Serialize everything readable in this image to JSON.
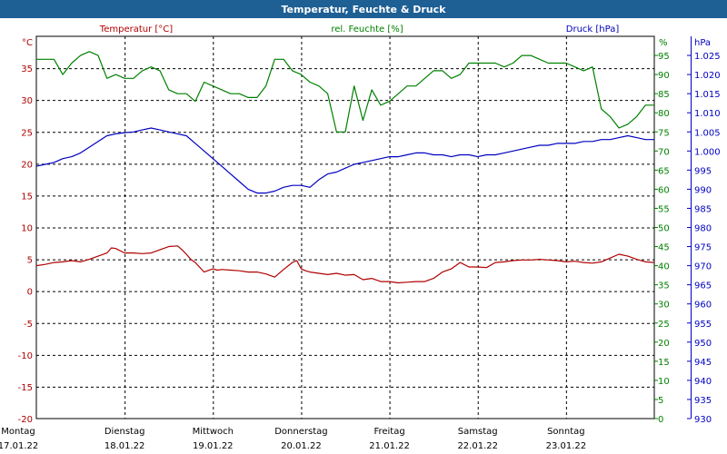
{
  "header": {
    "title": "Temperatur, Feuchte & Druck"
  },
  "colors": {
    "title_bg": "#1e5f94",
    "title_text": "#ffffff",
    "temperature": "#b00000",
    "humidity": "#008000",
    "pressure": "#0000c0",
    "grid": "#000000",
    "axis_text": "#000000"
  },
  "chart_data": {
    "type": "line",
    "title": "Temperatur, Feuchte & Druck",
    "x_range": [
      0,
      7
    ],
    "days": [
      {
        "weekday": "Montag",
        "date": "17.01.22"
      },
      {
        "weekday": "Dienstag",
        "date": "18.01.22"
      },
      {
        "weekday": "Mittwoch",
        "date": "19.01.22"
      },
      {
        "weekday": "Donnerstag",
        "date": "20.01.22"
      },
      {
        "weekday": "Freitag",
        "date": "21.01.22"
      },
      {
        "weekday": "Samstag",
        "date": "22.01.22"
      },
      {
        "weekday": "Sonntag",
        "date": "23.01.22"
      }
    ],
    "axes": {
      "temperature": {
        "label": "Temperatur [°C]",
        "unit": "°C",
        "min": -20,
        "max": 40,
        "ticks": [
          -20,
          -15,
          -10,
          -5,
          0,
          5,
          10,
          15,
          20,
          25,
          30,
          35
        ]
      },
      "humidity": {
        "label": "rel. Feuchte [%]",
        "unit": "%",
        "min": 0,
        "max": 100,
        "ticks": [
          0,
          5,
          10,
          15,
          20,
          25,
          30,
          35,
          40,
          45,
          50,
          55,
          60,
          65,
          70,
          75,
          80,
          85,
          90,
          95
        ]
      },
      "pressure": {
        "label": "Druck [hPa]",
        "unit": "hPa",
        "min": 930,
        "max": 1030,
        "ticks": [
          "930",
          "935",
          "940",
          "945",
          "950",
          "955",
          "960",
          "965",
          "970",
          "975",
          "980",
          "985",
          "990",
          "995",
          "1.000",
          "1.005",
          "1.010",
          "1.015",
          "1.020",
          "1.025"
        ]
      }
    },
    "series": [
      {
        "name": "Temperatur [°C]",
        "axis": "temperature",
        "x": [
          0,
          0.1,
          0.2,
          0.3,
          0.4,
          0.5,
          0.6,
          0.7,
          0.8,
          0.85,
          0.9,
          1.0,
          1.1,
          1.2,
          1.3,
          1.4,
          1.5,
          1.6,
          1.65,
          1.7,
          1.75,
          1.8,
          1.9,
          2.0,
          2.05,
          2.1,
          2.2,
          2.3,
          2.4,
          2.5,
          2.6,
          2.7,
          2.8,
          2.9,
          2.95,
          3.0,
          3.05,
          3.1,
          3.2,
          3.3,
          3.4,
          3.5,
          3.6,
          3.7,
          3.8,
          3.9,
          4.0,
          4.1,
          4.2,
          4.3,
          4.4,
          4.5,
          4.6,
          4.7,
          4.8,
          4.9,
          5.0,
          5.1,
          5.2,
          5.3,
          5.4,
          5.5,
          5.6,
          5.7,
          5.8,
          5.9,
          6.0,
          6.1,
          6.2,
          6.3,
          6.4,
          6.5,
          6.6,
          6.7,
          6.8,
          6.9,
          7.0
        ],
        "values": [
          4.0,
          4.2,
          4.5,
          4.6,
          4.8,
          4.6,
          5.0,
          5.5,
          6.0,
          6.8,
          6.7,
          6.0,
          6.0,
          5.9,
          6.0,
          6.5,
          7.0,
          7.1,
          6.5,
          5.8,
          5.0,
          4.5,
          3.0,
          3.5,
          3.3,
          3.4,
          3.3,
          3.2,
          3.0,
          3.0,
          2.7,
          2.2,
          3.4,
          4.5,
          4.8,
          3.5,
          3.2,
          3.0,
          2.8,
          2.6,
          2.8,
          2.5,
          2.6,
          1.8,
          2.0,
          1.5,
          1.5,
          1.3,
          1.4,
          1.5,
          1.5,
          2.0,
          3.0,
          3.5,
          4.5,
          3.8,
          3.8,
          3.7,
          4.5,
          4.6,
          4.8,
          4.9,
          4.9,
          5.0,
          4.9,
          4.8,
          4.6,
          4.7,
          4.5,
          4.4,
          4.6,
          5.2,
          5.8,
          5.5,
          5.0,
          4.6,
          4.5
        ]
      },
      {
        "name": "rel. Feuchte [%]",
        "axis": "humidity",
        "x": [
          0,
          0.1,
          0.2,
          0.3,
          0.4,
          0.5,
          0.6,
          0.7,
          0.8,
          0.9,
          1.0,
          1.1,
          1.2,
          1.3,
          1.4,
          1.5,
          1.6,
          1.7,
          1.8,
          1.9,
          2.0,
          2.1,
          2.2,
          2.3,
          2.4,
          2.5,
          2.6,
          2.7,
          2.8,
          2.9,
          3.0,
          3.1,
          3.2,
          3.3,
          3.4,
          3.5,
          3.6,
          3.7,
          3.8,
          3.9,
          4.0,
          4.1,
          4.2,
          4.3,
          4.4,
          4.5,
          4.6,
          4.7,
          4.8,
          4.9,
          5.0,
          5.1,
          5.2,
          5.3,
          5.4,
          5.5,
          5.6,
          5.7,
          5.8,
          5.9,
          6.0,
          6.1,
          6.2,
          6.3,
          6.4,
          6.5,
          6.6,
          6.7,
          6.8,
          6.9,
          7.0
        ],
        "values": [
          94,
          94,
          94,
          90,
          93,
          95,
          96,
          95,
          89,
          90,
          89,
          89,
          91,
          92,
          91,
          86,
          85,
          85,
          83,
          88,
          87,
          86,
          85,
          85,
          84,
          84,
          87,
          94,
          94,
          91,
          90,
          88,
          87,
          85,
          75,
          75,
          87,
          78,
          86,
          82,
          83,
          85,
          87,
          87,
          89,
          91,
          91,
          89,
          90,
          93,
          93,
          93,
          93,
          92,
          93,
          95,
          95,
          94,
          93,
          93,
          93,
          92,
          91,
          92,
          81,
          79,
          76,
          77,
          79,
          82,
          82
        ]
      },
      {
        "name": "Druck [hPa]",
        "axis": "pressure",
        "x": [
          0,
          0.1,
          0.2,
          0.3,
          0.4,
          0.5,
          0.6,
          0.7,
          0.8,
          0.9,
          1.0,
          1.1,
          1.2,
          1.3,
          1.4,
          1.5,
          1.6,
          1.7,
          1.8,
          1.9,
          2.0,
          2.1,
          2.2,
          2.3,
          2.4,
          2.5,
          2.6,
          2.7,
          2.8,
          2.9,
          3.0,
          3.1,
          3.2,
          3.3,
          3.4,
          3.5,
          3.6,
          3.7,
          3.8,
          3.9,
          4.0,
          4.1,
          4.2,
          4.3,
          4.4,
          4.5,
          4.6,
          4.7,
          4.8,
          4.9,
          5.0,
          5.1,
          5.2,
          5.3,
          5.4,
          5.5,
          5.6,
          5.7,
          5.8,
          5.9,
          6.0,
          6.1,
          6.2,
          6.3,
          6.4,
          6.5,
          6.6,
          6.7,
          6.8,
          6.9,
          7.0
        ],
        "values": [
          996.0,
          996.5,
          997.0,
          998.0,
          998.5,
          999.5,
          1001.0,
          1002.5,
          1004.0,
          1004.5,
          1004.8,
          1005.0,
          1005.5,
          1006.0,
          1005.5,
          1005.0,
          1004.5,
          1004.0,
          1002.0,
          1000.0,
          998.0,
          996.0,
          994.0,
          992.0,
          990.0,
          989.0,
          989.0,
          989.5,
          990.5,
          991.0,
          991.0,
          990.5,
          992.5,
          994.0,
          994.5,
          995.5,
          996.5,
          997.0,
          997.5,
          998.0,
          998.5,
          998.5,
          999.0,
          999.5,
          999.5,
          999.0,
          999.0,
          998.5,
          999.0,
          999.0,
          998.5,
          999.0,
          999.0,
          999.5,
          1000.0,
          1000.5,
          1001.0,
          1001.5,
          1001.5,
          1002.0,
          1002.0,
          1002.0,
          1002.5,
          1002.5,
          1003.0,
          1003.0,
          1003.5,
          1004.0,
          1003.5,
          1003.0,
          1003.0
        ]
      }
    ]
  }
}
